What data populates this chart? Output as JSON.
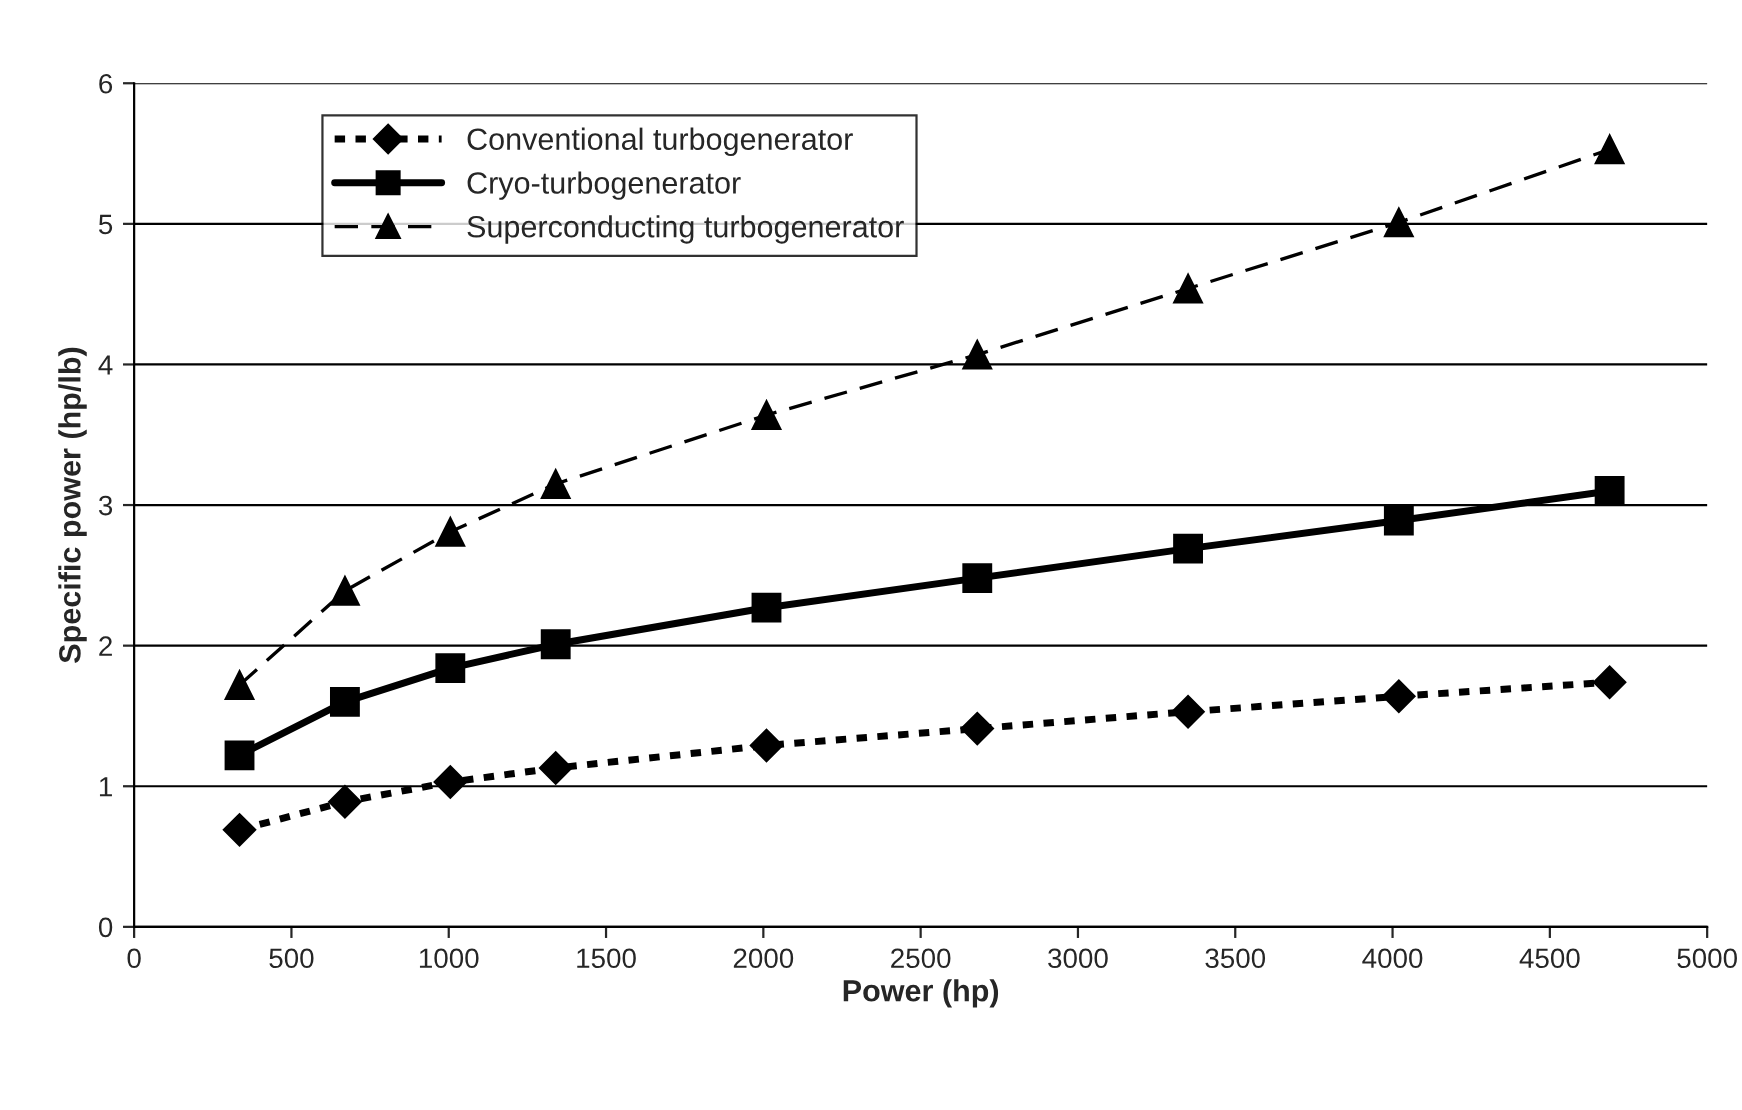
{
  "chart_data": {
    "type": "line",
    "xlabel": "Power (hp)",
    "ylabel": "Specific power (hp/lb)",
    "x": [
      335,
      670,
      1005,
      1340,
      2010,
      2680,
      3350,
      4020,
      4690
    ],
    "series": [
      {
        "name": "Conventional turbogenerator",
        "color": "#000000",
        "marker": "diamond",
        "line_style": "dotted",
        "values": [
          0.69,
          0.89,
          1.03,
          1.13,
          1.29,
          1.41,
          1.53,
          1.64,
          1.74
        ]
      },
      {
        "name": "Cryo-turbogenerator",
        "color": "#000000",
        "marker": "square",
        "line_style": "solid",
        "values": [
          1.22,
          1.6,
          1.84,
          2.01,
          2.27,
          2.48,
          2.69,
          2.89,
          3.1
        ]
      },
      {
        "name": "Superconducting turbogenerator",
        "color": "#000000",
        "marker": "triangle",
        "line_style": "dashed",
        "values": [
          1.72,
          2.39,
          2.81,
          3.15,
          3.64,
          4.07,
          4.54,
          5.01,
          5.53
        ]
      }
    ],
    "xlim": [
      0,
      5000
    ],
    "xticks": [
      0,
      500,
      1000,
      1500,
      2000,
      2500,
      3000,
      3500,
      4000,
      4500,
      5000
    ],
    "ylim": [
      0,
      6
    ],
    "yticks": [
      0,
      1,
      2,
      3,
      4,
      5,
      6
    ],
    "grid": "y",
    "legend": "top left"
  }
}
